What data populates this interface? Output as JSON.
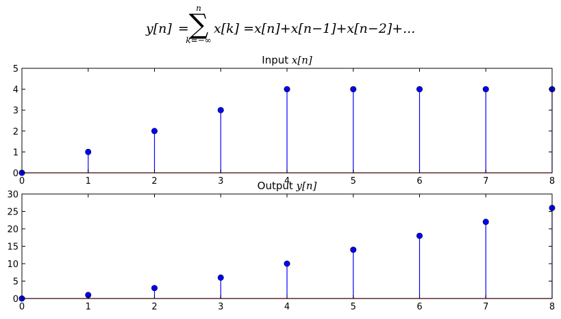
{
  "formula": {
    "lhs": "y[n]",
    "equals": "=",
    "sum_symbol": "∑",
    "sum_upper": "n",
    "sum_lower": "k=−∞",
    "summand": "x[k]",
    "expansion": "=x[n]+x[n−1]+x[n−2]+..."
  },
  "colors": {
    "stem": "#0000ff",
    "marker": "#0000ff",
    "baseline": "#ff0000",
    "axes": "#000000"
  },
  "chart_data": [
    {
      "type": "stem",
      "title_prefix": "Input ",
      "title_math": "x[n]",
      "x": [
        0,
        1,
        2,
        3,
        4,
        5,
        6,
        7,
        8
      ],
      "values": [
        0,
        1,
        2,
        3,
        4,
        4,
        4,
        4,
        4
      ],
      "xlim": [
        0,
        8
      ],
      "ylim": [
        0,
        5
      ],
      "xticks": [
        "0",
        "1",
        "2",
        "3",
        "4",
        "5",
        "6",
        "7",
        "8"
      ],
      "yticks": [
        "0",
        "1",
        "2",
        "3",
        "4",
        "5"
      ],
      "grid": false
    },
    {
      "type": "stem",
      "title_prefix": "Output ",
      "title_math": "y[n]",
      "x": [
        0,
        1,
        2,
        3,
        4,
        5,
        6,
        7,
        8
      ],
      "values": [
        0,
        1,
        3,
        6,
        10,
        14,
        18,
        22,
        26
      ],
      "xlim": [
        0,
        8
      ],
      "ylim": [
        0,
        30
      ],
      "xticks": [
        "0",
        "1",
        "2",
        "3",
        "4",
        "5",
        "6",
        "7",
        "8"
      ],
      "yticks": [
        "0",
        "5",
        "10",
        "15",
        "20",
        "25",
        "30"
      ],
      "grid": false
    }
  ]
}
